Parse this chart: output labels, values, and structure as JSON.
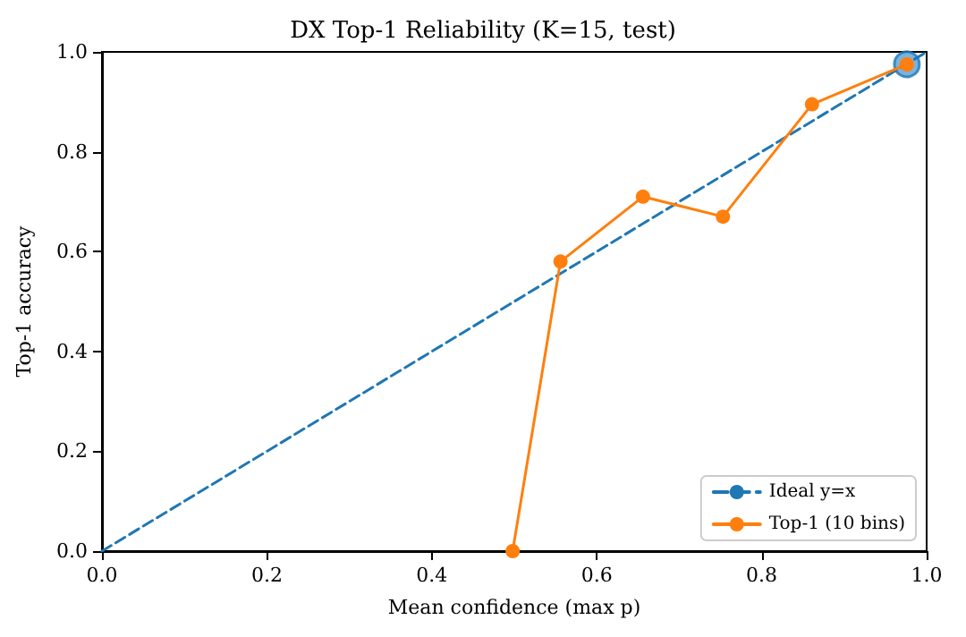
{
  "chart_data": {
    "type": "line",
    "title": "DX Top-1 Reliability (K=15, test)",
    "xlabel": "Mean confidence (max p)",
    "ylabel": "Top-1 accuracy",
    "xlim": [
      0,
      1
    ],
    "ylim": [
      0,
      1
    ],
    "xticks": [
      {
        "value": 0,
        "label": "0.0"
      },
      {
        "value": 0.2,
        "label": "0.2"
      },
      {
        "value": 0.4,
        "label": "0.4"
      },
      {
        "value": 0.6,
        "label": "0.6"
      },
      {
        "value": 0.8,
        "label": "0.8"
      },
      {
        "value": 1,
        "label": "1.0"
      }
    ],
    "yticks": [
      {
        "value": 0,
        "label": "0.0"
      },
      {
        "value": 0.2,
        "label": "0.2"
      },
      {
        "value": 0.4,
        "label": "0.4"
      },
      {
        "value": 0.6,
        "label": "0.6"
      },
      {
        "value": 0.8,
        "label": "0.8"
      },
      {
        "value": 1,
        "label": "1.0"
      }
    ],
    "grid": false,
    "legend": "bottom right",
    "series": [
      {
        "name": "Ideal y=x",
        "color": "#1f77b4",
        "line_style": "dashed",
        "marker": "none",
        "x": [
          0,
          1
        ],
        "values": [
          0,
          1
        ]
      },
      {
        "type": "scatter",
        "color": "#5b9fd6",
        "marker": "circle",
        "x": [
          0.976
        ],
        "values": [
          0.975
        ]
      },
      {
        "name": "Top-1 (10 bins)",
        "color": "#ff7f0e",
        "line_style": "solid",
        "marker": "circle",
        "x": [
          0.498,
          0.556,
          0.656,
          0.753,
          0.861,
          0.976
        ],
        "values": [
          0,
          0.58,
          0.71,
          0.67,
          0.895,
          0.975
        ]
      }
    ]
  }
}
